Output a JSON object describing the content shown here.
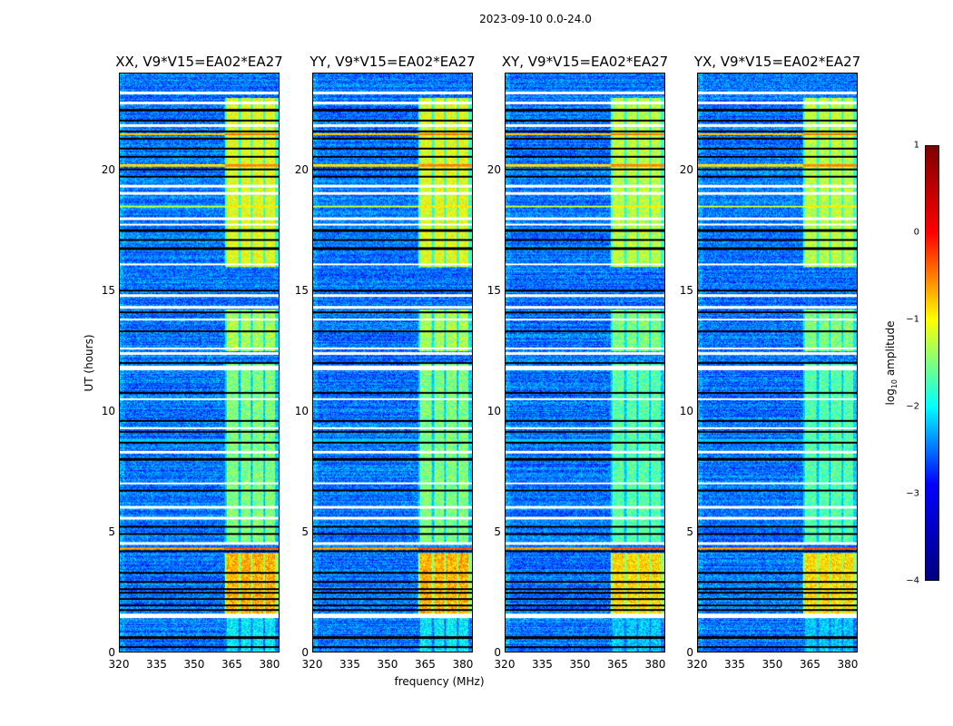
{
  "figure": {
    "suptitle": "2023-09-10 0.0-24.0"
  },
  "chart_data": {
    "type": "heatmap",
    "panels": [
      {
        "title": "XX, V9*V15=EA02*EA27",
        "pol": "XX"
      },
      {
        "title": "YY, V9*V15=EA02*EA27",
        "pol": "YY"
      },
      {
        "title": "XY, V9*V15=EA02*EA27",
        "pol": "XY"
      },
      {
        "title": "YX, V9*V15=EA02*EA27",
        "pol": "YX"
      }
    ],
    "xlabel": "frequency (MHz)",
    "ylabel": "UT (hours)",
    "xlim": [
      320,
      384
    ],
    "ylim": [
      0,
      24
    ],
    "xticks": [
      "320",
      "335",
      "350",
      "365",
      "380"
    ],
    "xtick_values": [
      320,
      335,
      350,
      365,
      380
    ],
    "yticks": [
      "0",
      "5",
      "10",
      "15",
      "20"
    ],
    "ytick_values": [
      0,
      5,
      10,
      15,
      20
    ],
    "colorbar": {
      "label": "log10 amplitude",
      "label_main": "log",
      "label_sub": "10",
      "label_rest": " amplitude",
      "range": [
        -4,
        1
      ],
      "ticks": [
        "1",
        "0",
        "−1",
        "−2",
        "−3",
        "−4"
      ],
      "tick_values": [
        1,
        0,
        -1,
        -2,
        -3,
        -4
      ],
      "colormap": "jet"
    },
    "background_log_amplitude": -2.8,
    "rfi_channels_mhz": [
      [
        363,
        367.5
      ],
      [
        368.5,
        372.5
      ],
      [
        373.5,
        377.5
      ],
      [
        378.5,
        382.5
      ]
    ],
    "rfi_time_ranges": [
      {
        "t": [
          0,
          1.4
        ],
        "amp": -2.2
      },
      {
        "t": [
          1.6,
          4.1
        ],
        "amp": -0.5
      },
      {
        "t": [
          4.5,
          12
        ],
        "amp": -1.5
      },
      {
        "t": [
          12.5,
          14.2
        ],
        "amp": -1.3
      },
      {
        "t": [
          16,
          23
        ],
        "amp": -1.0
      }
    ],
    "flagged_times_hours": [
      23.2,
      22.8,
      21.85,
      19.35,
      19.05,
      18.0,
      17.75,
      16.1,
      14.8,
      14.3,
      13.8,
      12.6,
      12.4,
      11.8,
      10.5,
      9.3,
      8.3,
      7.0,
      6.0,
      5.55,
      4.5,
      1.5
    ],
    "zero_times_hours": [
      22.5,
      22.05,
      21.6,
      21.3,
      20.9,
      20.55,
      20.05,
      19.75,
      17.5,
      17.1,
      16.75,
      15.0,
      14.1,
      13.3,
      12.0,
      10.75,
      9.6,
      9.15,
      8.7,
      8.0,
      6.7,
      5.2,
      4.9,
      4.2,
      3.3,
      2.9,
      2.6,
      2.45,
      2.2,
      1.95,
      1.75,
      0.6,
      0.2
    ],
    "broadband_events": [
      {
        "t": 20.2,
        "amp": -0.3
      },
      {
        "t": 18.5,
        "amp": -0.8
      },
      {
        "t": 21.5,
        "amp": -0.2
      },
      {
        "t": 4.3,
        "amp": 0.0
      },
      {
        "t": 8.8,
        "amp": -2.0
      }
    ]
  }
}
